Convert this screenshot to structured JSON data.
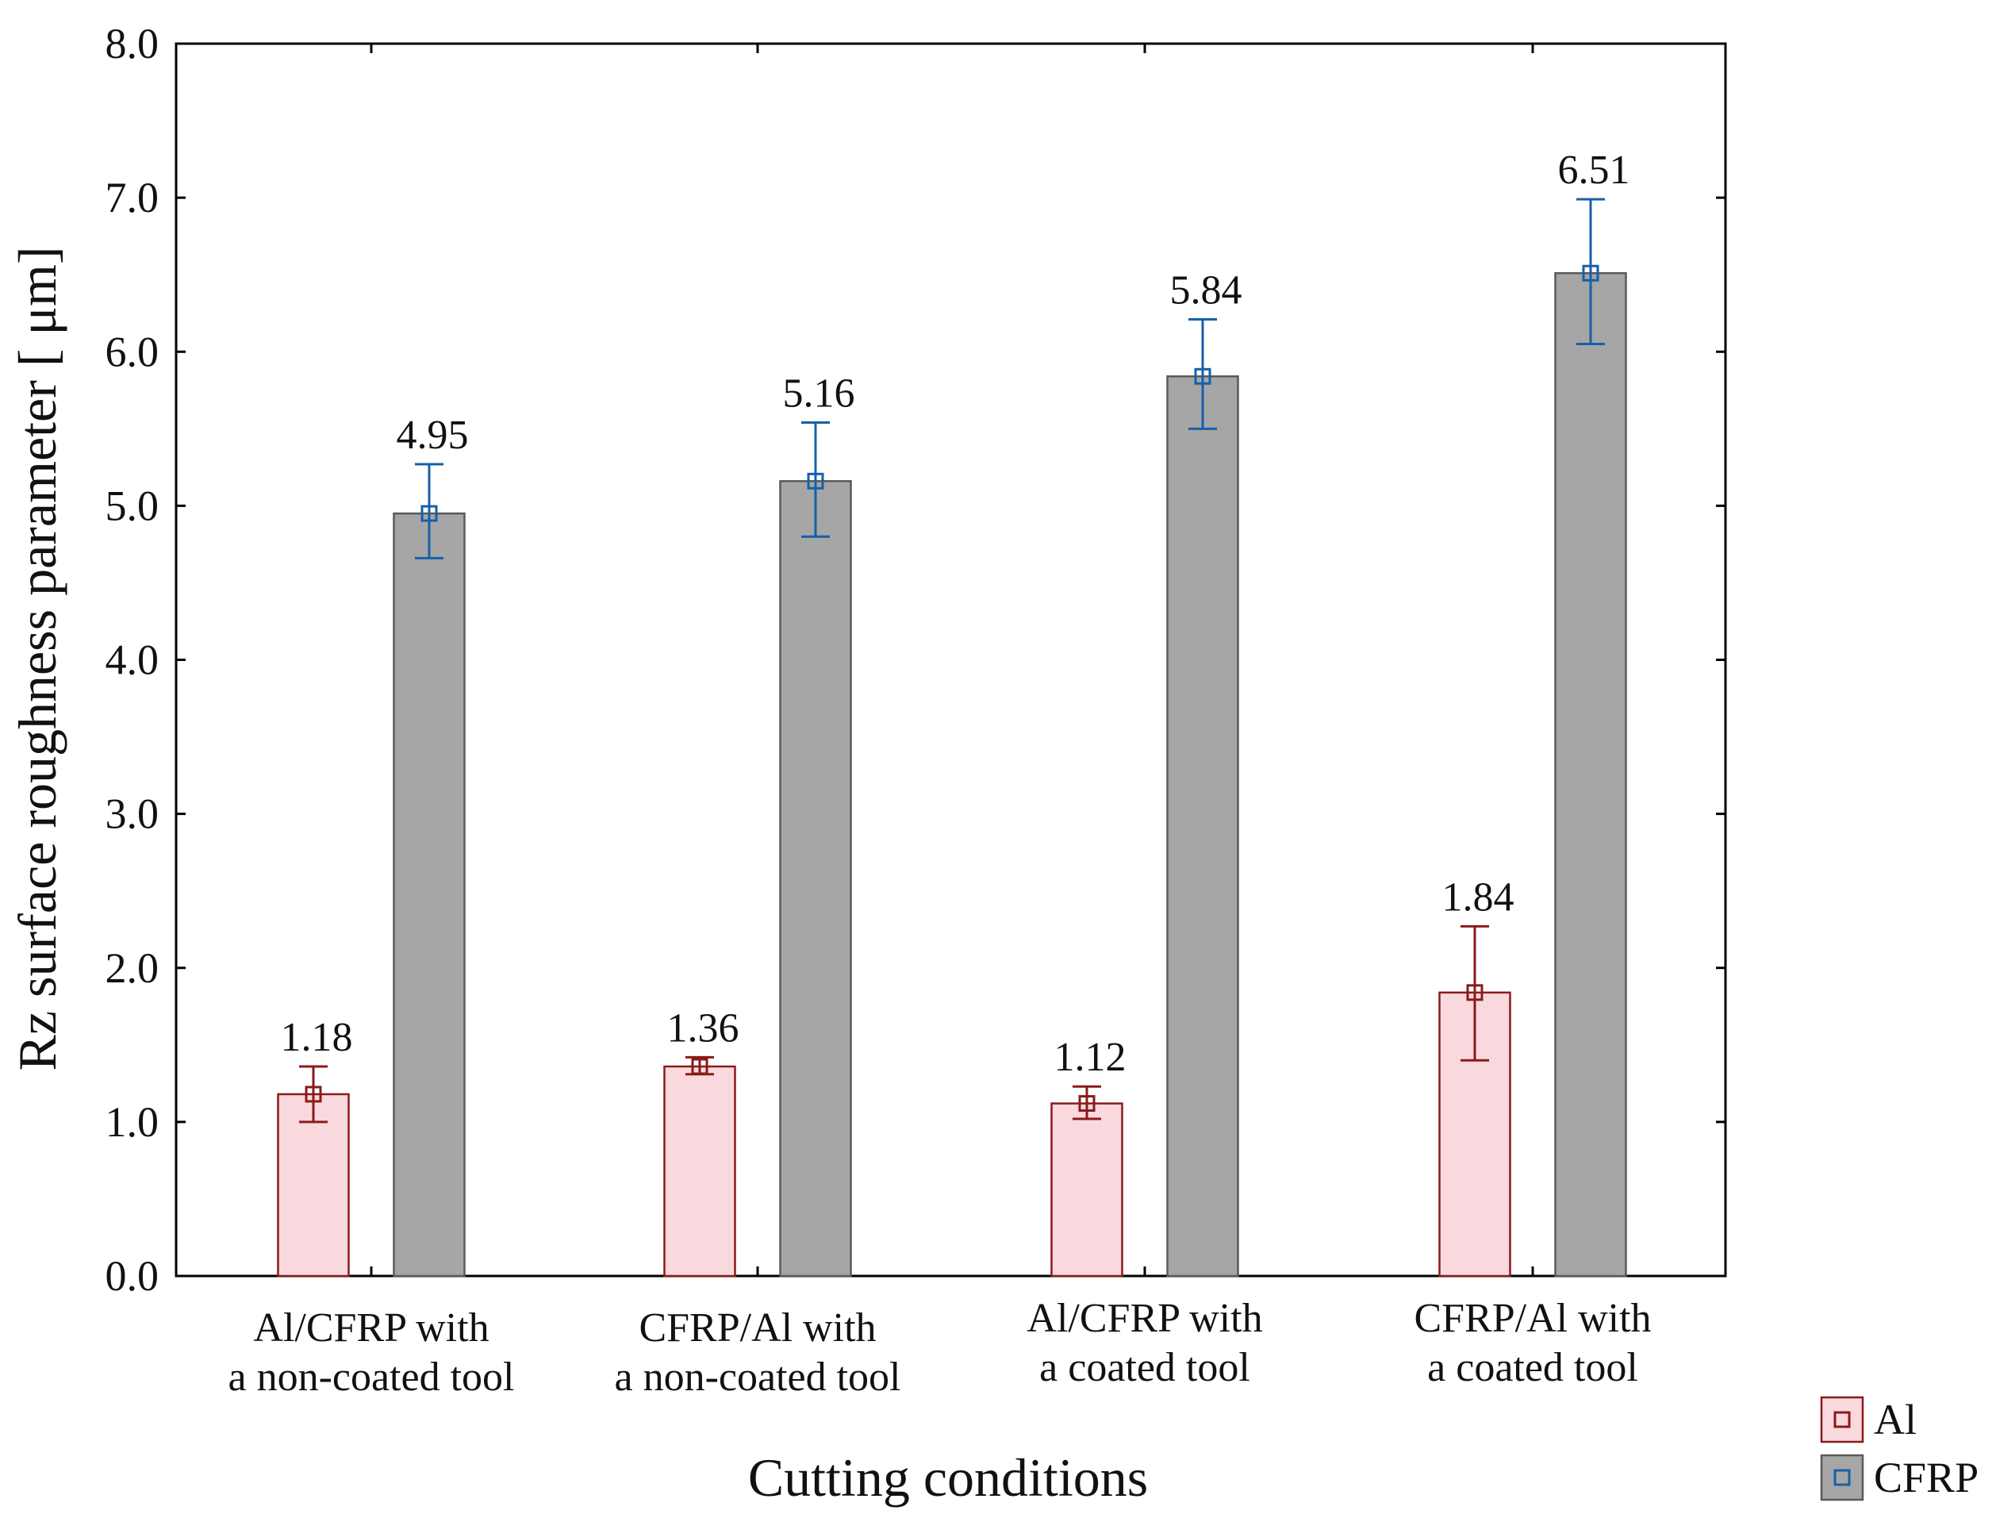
{
  "chart_data": {
    "type": "bar",
    "title": "",
    "xlabel": "Cutting conditions",
    "ylabel": "Rz surface roughness parameter [ μm]",
    "ylim": [
      0.0,
      8.0
    ],
    "yticks": [
      "0.0",
      "1.0",
      "2.0",
      "3.0",
      "4.0",
      "5.0",
      "6.0",
      "7.0",
      "8.0"
    ],
    "grid": false,
    "legend_position": "bottom-right",
    "categories": [
      [
        "Al/CFRP with",
        "a non-coated tool"
      ],
      [
        "CFRP/Al with",
        "a non-coated tool"
      ],
      [
        "Al/CFRP with",
        "a coated tool"
      ],
      [
        "CFRP/Al with",
        "a coated tool"
      ]
    ],
    "series": [
      {
        "name": "Al",
        "color_fill": "#f9d9dd",
        "color_edge": "#8b1a1a",
        "values": [
          1.18,
          1.36,
          1.12,
          1.84
        ],
        "labels": [
          "1.18",
          "1.36",
          "1.12",
          "1.84"
        ],
        "error_low": [
          1.0,
          1.31,
          1.02,
          1.4
        ],
        "error_high": [
          1.36,
          1.42,
          1.23,
          2.27
        ]
      },
      {
        "name": "CFRP",
        "color_fill": "#a6a6a6",
        "color_edge": "#5a5a5a",
        "marker_color": "#1560a8",
        "values": [
          4.95,
          5.16,
          5.84,
          6.51
        ],
        "labels": [
          "4.95",
          "5.16",
          "5.84",
          "6.51"
        ],
        "error_low": [
          4.66,
          4.8,
          5.5,
          6.05
        ],
        "error_high": [
          5.27,
          5.54,
          6.21,
          6.99
        ]
      }
    ]
  }
}
